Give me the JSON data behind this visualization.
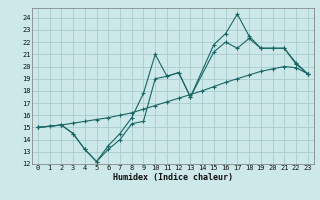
{
  "xlabel": "Humidex (Indice chaleur)",
  "background_color": "#cce8e8",
  "grid_color": "#aacccc",
  "line_color": "#1a6666",
  "xlim": [
    -0.5,
    23.5
  ],
  "ylim": [
    12,
    24.8
  ],
  "xticks": [
    0,
    1,
    2,
    3,
    4,
    5,
    6,
    7,
    8,
    9,
    10,
    11,
    12,
    13,
    14,
    15,
    16,
    17,
    18,
    19,
    20,
    21,
    22,
    23
  ],
  "yticks": [
    12,
    13,
    14,
    15,
    16,
    17,
    18,
    19,
    20,
    21,
    22,
    23,
    24
  ],
  "line1_x": [
    0,
    1,
    2,
    3,
    4,
    5,
    6,
    7,
    8,
    9,
    10,
    11,
    12,
    13,
    14,
    15,
    16,
    17,
    18,
    19,
    20,
    21,
    22,
    23
  ],
  "line1_y": [
    15.0,
    15.1,
    15.2,
    15.35,
    15.5,
    15.65,
    15.8,
    16.0,
    16.2,
    16.5,
    16.8,
    17.1,
    17.4,
    17.7,
    18.0,
    18.35,
    18.7,
    19.0,
    19.3,
    19.6,
    19.8,
    20.0,
    19.9,
    19.4
  ],
  "line2_x": [
    0,
    2,
    3,
    4,
    5,
    6,
    7,
    8,
    9,
    10,
    11,
    12,
    13,
    15,
    16,
    17,
    18,
    19,
    20,
    21,
    22,
    23
  ],
  "line2_y": [
    15.0,
    15.2,
    14.5,
    13.2,
    12.2,
    13.2,
    14.0,
    15.3,
    15.5,
    19.0,
    19.2,
    19.5,
    17.5,
    21.2,
    22.0,
    21.5,
    22.3,
    21.5,
    21.5,
    21.5,
    20.2,
    19.4
  ],
  "line3_x": [
    0,
    2,
    3,
    4,
    5,
    6,
    7,
    8,
    9,
    10,
    11,
    12,
    13,
    15,
    16,
    17,
    18,
    19,
    20,
    21,
    22,
    23
  ],
  "line3_y": [
    15.0,
    15.2,
    14.5,
    13.2,
    12.2,
    13.5,
    14.5,
    15.8,
    17.8,
    21.0,
    19.2,
    19.5,
    17.5,
    21.8,
    22.7,
    24.3,
    22.5,
    21.5,
    21.5,
    21.5,
    20.3,
    19.4
  ]
}
